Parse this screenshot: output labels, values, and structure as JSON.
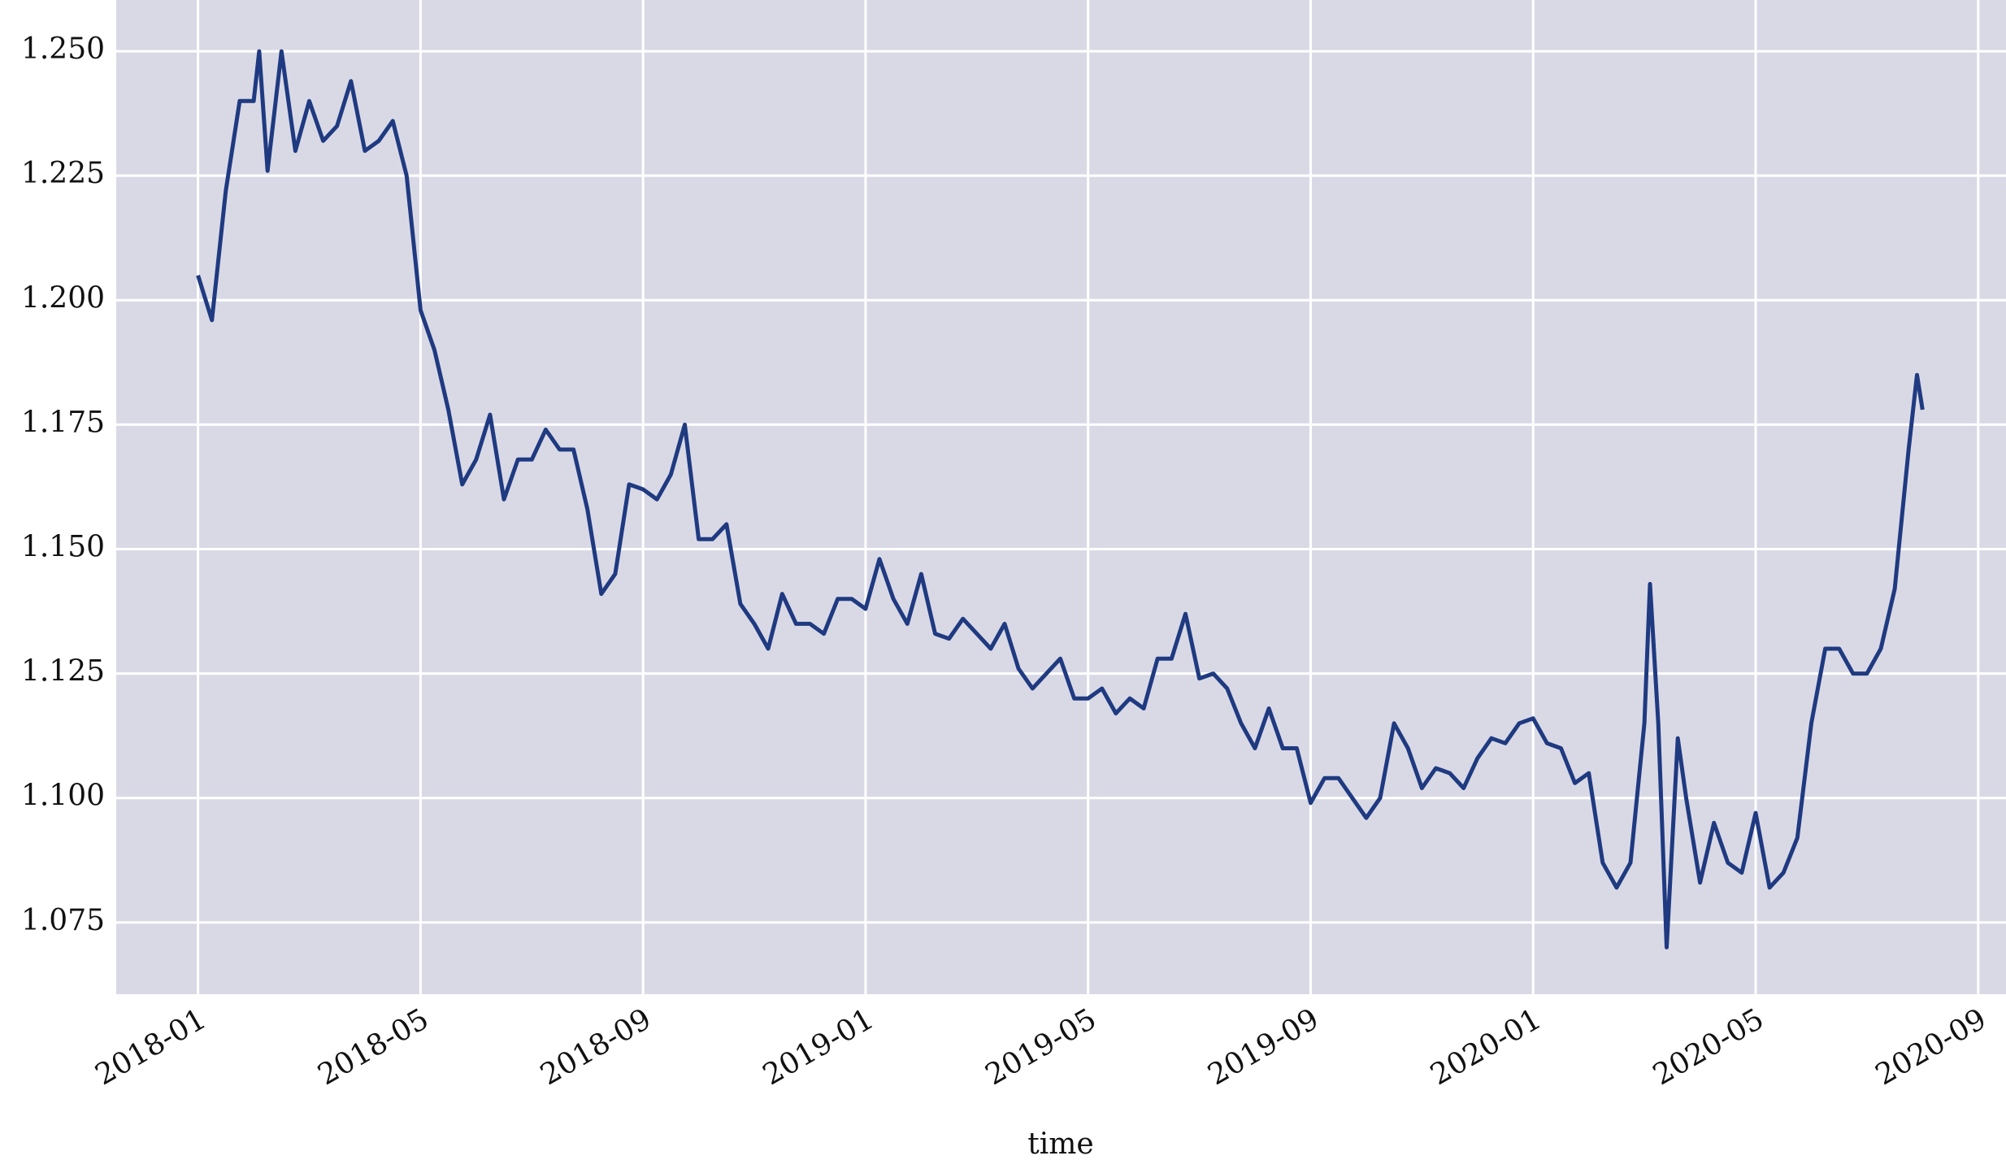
{
  "chart_data": {
    "type": "line",
    "xlabel": "time",
    "grid": true,
    "background": "#d9d9e6",
    "gridcolor": "#ffffff",
    "x": [
      0,
      0.25,
      0.5,
      0.75,
      1,
      1.1,
      1.25,
      1.5,
      1.75,
      2,
      2.25,
      2.5,
      2.75,
      3,
      3.25,
      3.5,
      3.75,
      4,
      4.25,
      4.5,
      4.75,
      5,
      5.25,
      5.5,
      5.75,
      6,
      6.25,
      6.5,
      6.75,
      7,
      7.25,
      7.5,
      7.75,
      8,
      8.25,
      8.5,
      8.75,
      9,
      9.25,
      9.5,
      9.75,
      10,
      10.25,
      10.5,
      10.75,
      11,
      11.25,
      11.5,
      11.75,
      12,
      12.25,
      12.5,
      12.75,
      13,
      13.25,
      13.5,
      13.75,
      14,
      14.25,
      14.5,
      14.75,
      15,
      15.25,
      15.5,
      15.75,
      16,
      16.25,
      16.5,
      16.75,
      17,
      17.25,
      17.5,
      17.75,
      18,
      18.25,
      18.5,
      18.75,
      19,
      19.25,
      19.5,
      19.75,
      20,
      20.25,
      20.5,
      20.75,
      21,
      21.25,
      21.5,
      21.75,
      22,
      22.25,
      22.5,
      22.75,
      23,
      23.25,
      23.5,
      23.75,
      24,
      24.25,
      24.5,
      24.75,
      25,
      25.25,
      25.5,
      25.75,
      26,
      26.1,
      26.25,
      26.4,
      26.6,
      26.75,
      27,
      27.25,
      27.5,
      27.75,
      28,
      28.25,
      28.5,
      28.75,
      29,
      29.25,
      29.5,
      29.75,
      30,
      30.25,
      30.5,
      30.75,
      30.9,
      31
    ],
    "series": [
      {
        "color": "#1f3a80",
        "values": [
          1.205,
          1.196,
          1.222,
          1.24,
          1.24,
          1.25,
          1.226,
          1.25,
          1.23,
          1.24,
          1.232,
          1.235,
          1.244,
          1.23,
          1.232,
          1.236,
          1.225,
          1.198,
          1.19,
          1.178,
          1.163,
          1.168,
          1.177,
          1.16,
          1.168,
          1.168,
          1.174,
          1.17,
          1.17,
          1.158,
          1.141,
          1.145,
          1.163,
          1.162,
          1.16,
          1.165,
          1.175,
          1.152,
          1.152,
          1.155,
          1.139,
          1.135,
          1.13,
          1.141,
          1.135,
          1.135,
          1.133,
          1.14,
          1.14,
          1.138,
          1.148,
          1.14,
          1.135,
          1.145,
          1.133,
          1.132,
          1.136,
          1.133,
          1.13,
          1.135,
          1.126,
          1.122,
          1.125,
          1.128,
          1.12,
          1.12,
          1.122,
          1.117,
          1.12,
          1.118,
          1.128,
          1.128,
          1.137,
          1.124,
          1.125,
          1.122,
          1.115,
          1.11,
          1.118,
          1.11,
          1.11,
          1.099,
          1.104,
          1.104,
          1.1,
          1.096,
          1.1,
          1.115,
          1.11,
          1.102,
          1.106,
          1.105,
          1.102,
          1.108,
          1.112,
          1.111,
          1.115,
          1.116,
          1.111,
          1.11,
          1.103,
          1.105,
          1.087,
          1.082,
          1.087,
          1.115,
          1.143,
          1.115,
          1.07,
          1.112,
          1.1,
          1.083,
          1.095,
          1.087,
          1.085,
          1.097,
          1.082,
          1.085,
          1.092,
          1.115,
          1.13,
          1.13,
          1.125,
          1.125,
          1.13,
          1.142,
          1.17,
          1.185,
          1.178
        ]
      }
    ],
    "xlim": [
      -1.47,
      32.5
    ],
    "xticks": [
      {
        "value": 0,
        "label": "2018-01"
      },
      {
        "value": 4,
        "label": "2018-05"
      },
      {
        "value": 8,
        "label": "2018-09"
      },
      {
        "value": 12,
        "label": "2019-01"
      },
      {
        "value": 16,
        "label": "2019-05"
      },
      {
        "value": 20,
        "label": "2019-09"
      },
      {
        "value": 24,
        "label": "2020-01"
      },
      {
        "value": 28,
        "label": "2020-05"
      },
      {
        "value": 32,
        "label": "2020-09"
      }
    ],
    "ylim": [
      1.0606,
      1.2603
    ],
    "yticks": [
      {
        "value": 1.075,
        "label": "1.075"
      },
      {
        "value": 1.1,
        "label": "1.100"
      },
      {
        "value": 1.125,
        "label": "1.125"
      },
      {
        "value": 1.15,
        "label": "1.150"
      },
      {
        "value": 1.175,
        "label": "1.175"
      },
      {
        "value": 1.2,
        "label": "1.200"
      },
      {
        "value": 1.225,
        "label": "1.225"
      },
      {
        "value": 1.25,
        "label": "1.250"
      }
    ]
  }
}
